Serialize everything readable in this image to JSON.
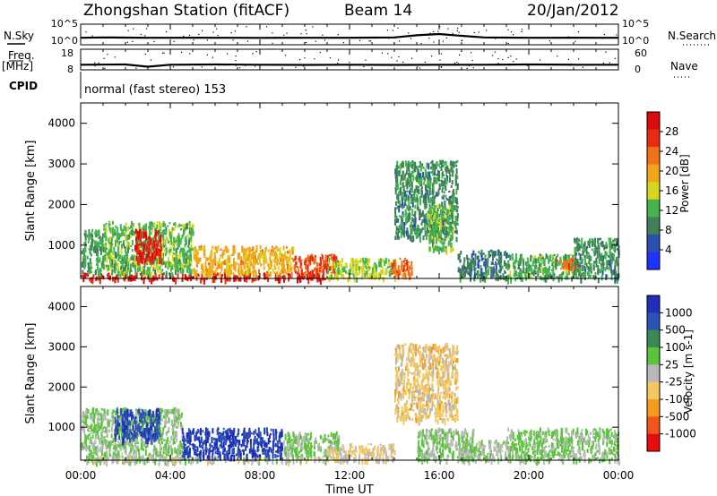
{
  "header": {
    "station": "Zhongshan Station (fitACF)",
    "beam": "Beam 14",
    "date": "20/Jan/2012"
  },
  "mode_label": "normal (fast stereo) 153",
  "left_labels": {
    "nsky": "N.Sky",
    "freq": "Freq.",
    "freq_unit": "[MHz]",
    "cpid": "CPID"
  },
  "right_labels": {
    "nsearch": "N.Search",
    "nave": "Nave"
  },
  "xaxis": {
    "title": "Time UT",
    "ticks": [
      "00:00",
      "04:00",
      "08:00",
      "12:00",
      "16:00",
      "20:00",
      "00:00"
    ]
  },
  "colors": {
    "power": [
      "#1f33ff",
      "#2a4fb0",
      "#3f7f5a",
      "#44b54d",
      "#d6d61c",
      "#f3a51a",
      "#f07417",
      "#e82c12",
      "#dc0a0a"
    ],
    "velocity": [
      "#e80d0d",
      "#f0561c",
      "#f39c1f",
      "#f3c861",
      "#b8b8b8",
      "#5ac53a",
      "#3a8a52",
      "#2b53b5",
      "#1f2fb8"
    ]
  },
  "chart_data": [
    {
      "type": "line",
      "panel": "noise-search",
      "x_range_hours": [
        0,
        24
      ],
      "ylim_left": [
        1,
        100000
      ],
      "ylim_right": [
        1,
        100000
      ],
      "left_ticks": [
        "10^5",
        "10^0"
      ],
      "right_ticks": [
        "10^5",
        "10^0"
      ],
      "series": [
        {
          "name": "N.Sky",
          "x": [
            0,
            1,
            2,
            3,
            4,
            5,
            6,
            7,
            8,
            9,
            10,
            11,
            12,
            13,
            14,
            15,
            16,
            17,
            18,
            19,
            20,
            21,
            22,
            23,
            24
          ],
          "y": [
            50,
            60,
            55,
            50,
            50,
            52,
            50,
            50,
            48,
            50,
            50,
            50,
            50,
            55,
            60,
            200,
            400,
            150,
            60,
            55,
            50,
            50,
            52,
            50,
            50
          ]
        }
      ]
    },
    {
      "type": "line",
      "panel": "frequency-nave",
      "x_range_hours": [
        0,
        24
      ],
      "ylim_left": [
        8,
        18
      ],
      "ylim_right": [
        0,
        60
      ],
      "left_ticks": [
        "18",
        "8"
      ],
      "right_ticks": [
        "60",
        "0"
      ],
      "series": [
        {
          "name": "Freq.",
          "x": [
            0,
            2,
            3,
            4,
            6,
            8,
            10,
            12,
            14,
            16,
            18,
            20,
            22,
            24
          ],
          "y": [
            10.5,
            10.6,
            9.5,
            10.5,
            10.6,
            10.5,
            10.4,
            10.5,
            10.4,
            10.5,
            10.5,
            10.6,
            10.5,
            10.5
          ]
        }
      ]
    },
    {
      "type": "heatmap",
      "panel": "power",
      "xlabel": "Time UT",
      "ylabel": "Slant Range [km]",
      "ylim": [
        180,
        4500
      ],
      "y_ticks": [
        1000,
        2000,
        3000,
        4000
      ],
      "x_range_hours": [
        0,
        24
      ],
      "colorbar": {
        "label": "Power [dB]",
        "ticks": [
          "28",
          "24",
          "20",
          "16",
          "12",
          "8",
          "4"
        ],
        "range": [
          0,
          30
        ]
      },
      "regions": [
        {
          "t0": 0.0,
          "t1": 11.0,
          "r0": 180,
          "r1": 330,
          "value": 27
        },
        {
          "t0": 0.0,
          "t1": 1.0,
          "r0": 330,
          "r1": 1400,
          "value": 10
        },
        {
          "t0": 1.0,
          "t1": 5.0,
          "r0": 330,
          "r1": 1600,
          "value": 12
        },
        {
          "t0": 2.4,
          "t1": 3.6,
          "r0": 600,
          "r1": 1400,
          "value": 27
        },
        {
          "t0": 5.0,
          "t1": 9.5,
          "r0": 330,
          "r1": 1000,
          "value": 18
        },
        {
          "t0": 9.5,
          "t1": 11.5,
          "r0": 330,
          "r1": 800,
          "value": 24
        },
        {
          "t0": 11.0,
          "t1": 14.0,
          "r0": 200,
          "r1": 700,
          "value": 14
        },
        {
          "t0": 13.8,
          "t1": 14.8,
          "r0": 300,
          "r1": 700,
          "value": 22
        },
        {
          "t0": 14.0,
          "t1": 16.8,
          "r0": 1200,
          "r1": 3100,
          "value": 9
        },
        {
          "t0": 15.5,
          "t1": 16.6,
          "r0": 900,
          "r1": 2000,
          "value": 12
        },
        {
          "t0": 16.8,
          "t1": 19.0,
          "r0": 200,
          "r1": 900,
          "value": 8
        },
        {
          "t0": 19.0,
          "t1": 22.0,
          "r0": 200,
          "r1": 800,
          "value": 11
        },
        {
          "t0": 21.2,
          "t1": 22.2,
          "r0": 450,
          "r1": 700,
          "value": 22
        },
        {
          "t0": 22.0,
          "t1": 24.0,
          "r0": 200,
          "r1": 1200,
          "value": 9
        }
      ]
    },
    {
      "type": "heatmap",
      "panel": "velocity",
      "xlabel": "Time UT",
      "ylabel": "Slant Range [km]",
      "ylim": [
        180,
        4500
      ],
      "y_ticks": [
        1000,
        2000,
        3000,
        4000
      ],
      "x_range_hours": [
        0,
        24
      ],
      "colorbar": {
        "label": "Velocity [m s-1]",
        "ticks": [
          "1000",
          "500",
          "100",
          "25",
          "-25",
          "-100",
          "-500",
          "-1000"
        ],
        "range": [
          -1000,
          1000
        ]
      },
      "regions": [
        {
          "t0": 0.0,
          "t1": 4.5,
          "r0": 180,
          "r1": 1500,
          "value": 150
        },
        {
          "t0": 0.0,
          "t1": 11.5,
          "r0": 180,
          "r1": 300,
          "value": 0
        },
        {
          "t0": 1.5,
          "t1": 3.5,
          "r0": 700,
          "r1": 1500,
          "value": 700
        },
        {
          "t0": 4.5,
          "t1": 9.0,
          "r0": 300,
          "r1": 1000,
          "value": 800
        },
        {
          "t0": 9.0,
          "t1": 11.5,
          "r0": 300,
          "r1": 900,
          "value": 150
        },
        {
          "t0": 11.0,
          "t1": 14.0,
          "r0": 200,
          "r1": 600,
          "value": -100
        },
        {
          "t0": 14.0,
          "t1": 16.8,
          "r0": 1200,
          "r1": 3100,
          "value": -200
        },
        {
          "t0": 15.0,
          "t1": 17.5,
          "r0": 200,
          "r1": 1000,
          "value": 150
        },
        {
          "t0": 16.8,
          "t1": 19.0,
          "r0": 200,
          "r1": 700,
          "value": 60
        },
        {
          "t0": 19.0,
          "t1": 24.0,
          "r0": 200,
          "r1": 1000,
          "value": 150
        }
      ]
    }
  ]
}
